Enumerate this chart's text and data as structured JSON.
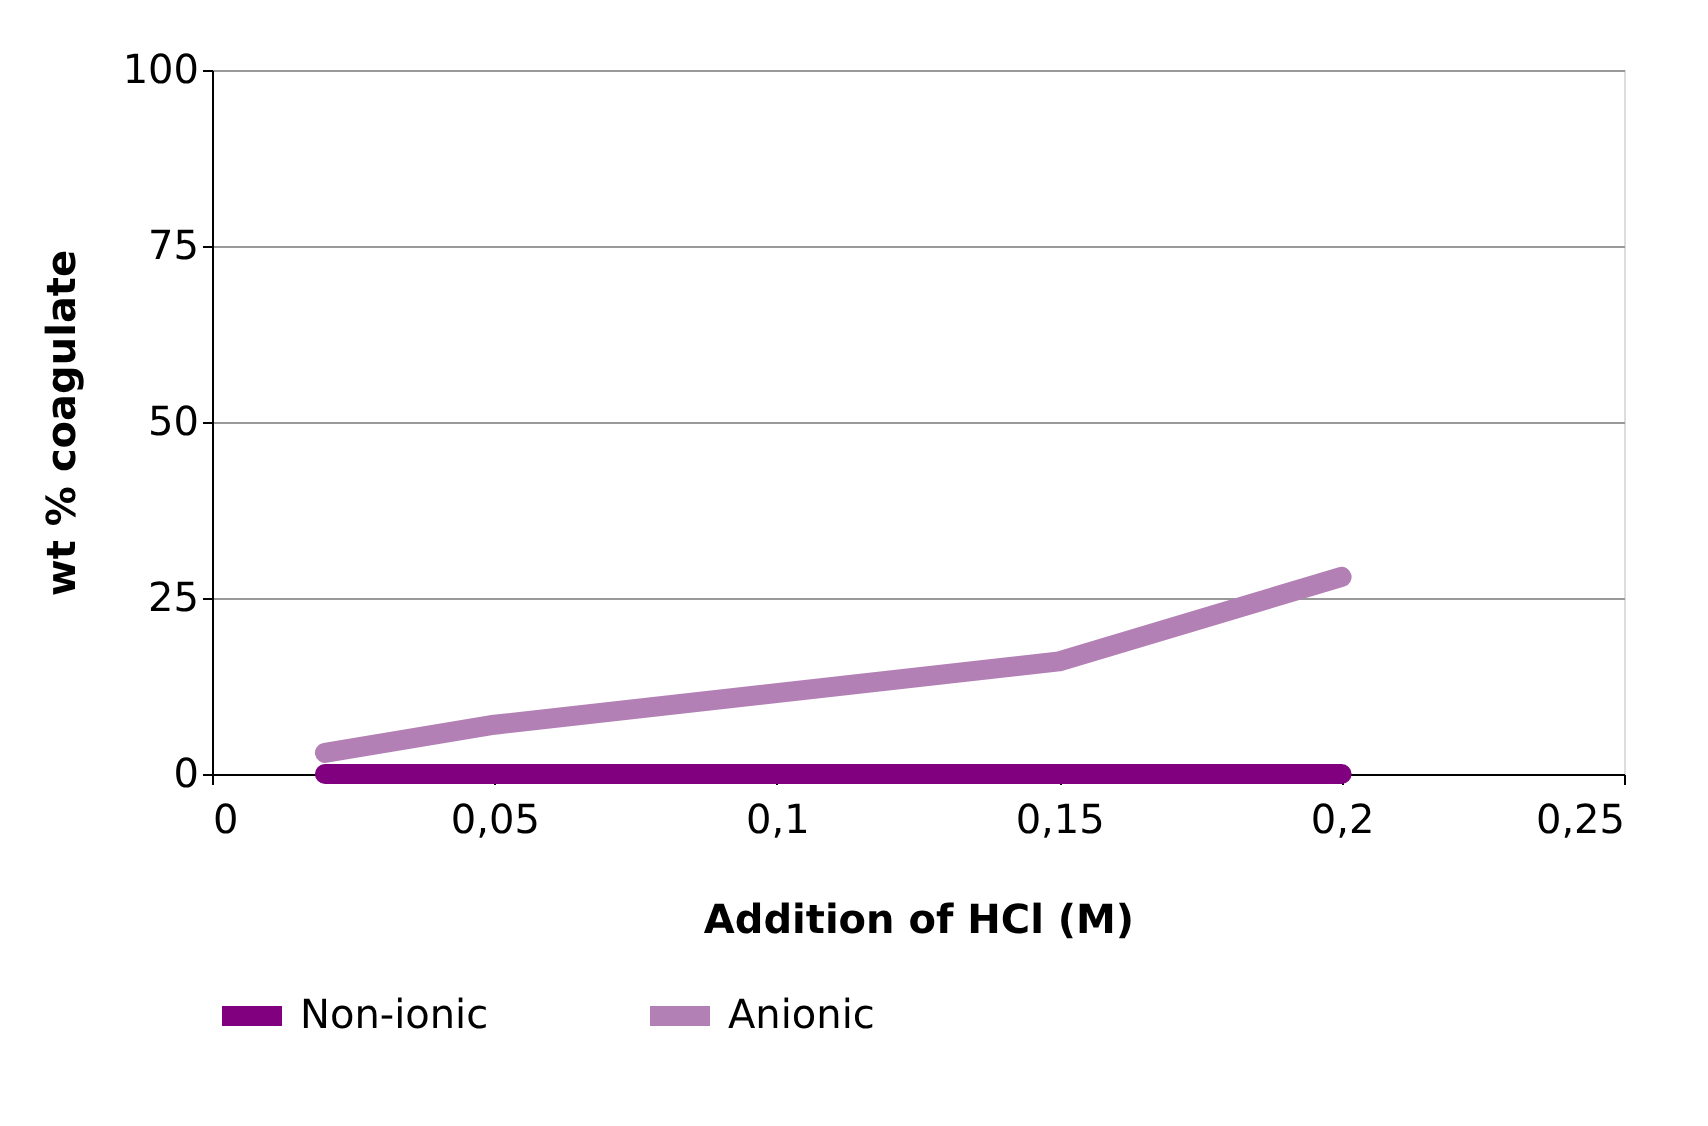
{
  "chart_data": {
    "type": "line",
    "xlabel": "Addition of HCl (M)",
    "ylabel": "wt % coagulate",
    "series": [
      {
        "name": "Non-ionic",
        "color": "#800080",
        "x": [
          0.02,
          0.05,
          0.15,
          0.2
        ],
        "values": [
          0,
          0,
          0,
          0
        ]
      },
      {
        "name": "Anionic",
        "color": "#b380b5",
        "x": [
          0.02,
          0.05,
          0.15,
          0.2
        ],
        "values": [
          3,
          7,
          16,
          28
        ]
      }
    ],
    "xlim": [
      0,
      0.25
    ],
    "xticks": [
      0,
      {
        "value": 0.05,
        "label": "0,05"
      },
      {
        "value": 0.1,
        "label": "0,1"
      },
      {
        "value": 0.15,
        "label": "0,15"
      },
      {
        "value": 0.2,
        "label": "0,2"
      },
      {
        "value": 0.25,
        "label": "0,25"
      }
    ],
    "ylim": [
      0,
      100
    ],
    "yticks": [
      0,
      25,
      50,
      75,
      100
    ],
    "grid": "y",
    "legend": "bottom",
    "line_style": "solid"
  }
}
